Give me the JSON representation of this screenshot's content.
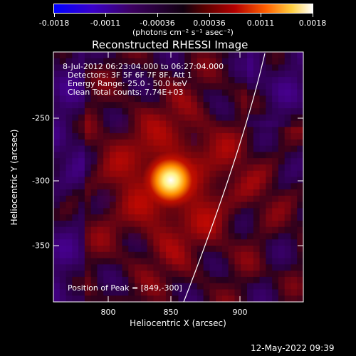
{
  "colorbar": {
    "tick_labels": [
      "-0.0018",
      "-0.0011",
      "-0.00036",
      "0.00036",
      "0.0011",
      "0.0018"
    ],
    "units_label": "(photons cm⁻² s⁻¹ asec⁻²)"
  },
  "title": "Reconstructed RHESSI Image",
  "info": {
    "line1": "8-Jul-2012 06:23:04.000 to 06:27:04.000",
    "line2": "Detectors: 3F 5F 6F 7F 8F, Att 1",
    "line3": "Energy Range: 25.0 - 50.0 keV",
    "line4": "Clean    Total counts: 7.74E+03"
  },
  "peak_label": "Position of Peak = [849,-300]",
  "axes": {
    "xlabel": "Heliocentric X (arcsec)",
    "ylabel": "Heliocentric Y (arcsec)",
    "xticks": [
      "800",
      "850",
      "900"
    ],
    "yticks": [
      "-250",
      "-300",
      "-350"
    ]
  },
  "timestamp": "12-May-2022 09:39"
}
